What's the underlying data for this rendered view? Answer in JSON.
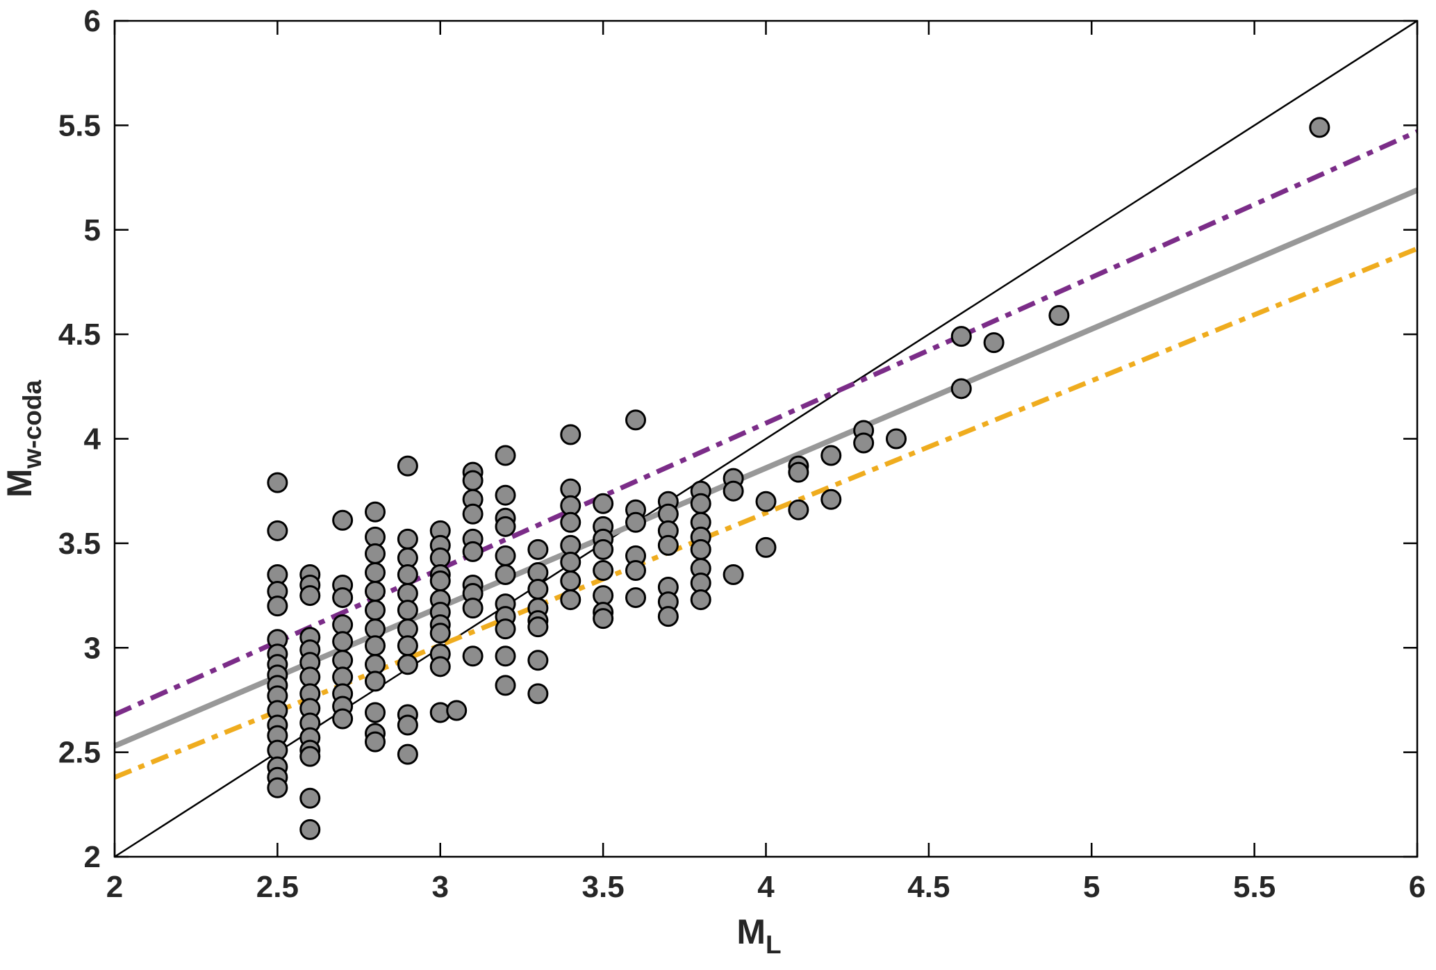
{
  "figure": {
    "background": "#ffffff",
    "frame_color": "#000000",
    "tick_color": "#262626"
  },
  "axes": {
    "xlabel": {
      "main": "M",
      "sub": "L"
    },
    "ylabel": {
      "main": "M",
      "sub": "w-coda"
    },
    "xtick_labels": [
      "2",
      "2.5",
      "3",
      "3.5",
      "4",
      "4.5",
      "5",
      "5.5",
      "6"
    ],
    "ytick_labels": [
      "2",
      "2.5",
      "3",
      "3.5",
      "4",
      "4.5",
      "5",
      "5.5",
      "6"
    ]
  },
  "chart_data": {
    "type": "scatter",
    "title": "",
    "xlabel": "M_L",
    "ylabel": "M_w-coda",
    "xlim": [
      2,
      6
    ],
    "ylim": [
      2,
      6
    ],
    "xticks": [
      2,
      2.5,
      3,
      3.5,
      4,
      4.5,
      5,
      5.5,
      6
    ],
    "yticks": [
      2,
      2.5,
      3,
      3.5,
      4,
      4.5,
      5,
      5.5,
      6
    ],
    "grid": false,
    "legend": "none",
    "marker": {
      "fill": "#8D8D8D",
      "stroke": "#000000",
      "radius": 13.5,
      "stroke_width": 3
    },
    "lines": [
      {
        "name": "one-to-one-line",
        "x": [
          2,
          6
        ],
        "y": [
          2,
          6
        ],
        "color": "#000000",
        "style": "solid",
        "width": 2.5
      },
      {
        "name": "regression-line",
        "x": [
          2,
          6
        ],
        "y": [
          2.53,
          5.19
        ],
        "color": "#989898",
        "style": "solid",
        "width": 8
      },
      {
        "name": "upper-bound-line",
        "x": [
          2,
          6
        ],
        "y": [
          2.68,
          5.47
        ],
        "color": "#7B2C88",
        "style": "dashdot",
        "width": 7
      },
      {
        "name": "lower-bound-line",
        "x": [
          2,
          6
        ],
        "y": [
          2.38,
          4.91
        ],
        "color": "#EFAC1E",
        "style": "dashdot",
        "width": 7
      }
    ],
    "points": [
      [
        2.5,
        3.79
      ],
      [
        2.5,
        3.56
      ],
      [
        2.5,
        3.35
      ],
      [
        2.5,
        3.27
      ],
      [
        2.5,
        3.2
      ],
      [
        2.5,
        3.04
      ],
      [
        2.5,
        2.97
      ],
      [
        2.5,
        2.92
      ],
      [
        2.5,
        2.87
      ],
      [
        2.5,
        2.82
      ],
      [
        2.5,
        2.77
      ],
      [
        2.5,
        2.7
      ],
      [
        2.5,
        2.63
      ],
      [
        2.5,
        2.58
      ],
      [
        2.5,
        2.51
      ],
      [
        2.5,
        2.43
      ],
      [
        2.5,
        2.38
      ],
      [
        2.5,
        2.33
      ],
      [
        2.6,
        3.35
      ],
      [
        2.6,
        3.3
      ],
      [
        2.6,
        3.25
      ],
      [
        2.6,
        3.05
      ],
      [
        2.6,
        2.99
      ],
      [
        2.6,
        2.93
      ],
      [
        2.6,
        2.86
      ],
      [
        2.6,
        2.78
      ],
      [
        2.6,
        2.71
      ],
      [
        2.6,
        2.64
      ],
      [
        2.6,
        2.57
      ],
      [
        2.6,
        2.51
      ],
      [
        2.6,
        2.48
      ],
      [
        2.6,
        2.28
      ],
      [
        2.6,
        2.13
      ],
      [
        2.7,
        3.61
      ],
      [
        2.7,
        3.3
      ],
      [
        2.7,
        3.24
      ],
      [
        2.7,
        3.11
      ],
      [
        2.7,
        3.03
      ],
      [
        2.7,
        2.94
      ],
      [
        2.7,
        2.86
      ],
      [
        2.7,
        2.78
      ],
      [
        2.7,
        2.72
      ],
      [
        2.7,
        2.66
      ],
      [
        2.8,
        3.65
      ],
      [
        2.8,
        3.53
      ],
      [
        2.8,
        3.45
      ],
      [
        2.8,
        3.36
      ],
      [
        2.8,
        3.27
      ],
      [
        2.8,
        3.18
      ],
      [
        2.8,
        3.09
      ],
      [
        2.8,
        3.01
      ],
      [
        2.8,
        2.92
      ],
      [
        2.8,
        2.84
      ],
      [
        2.8,
        2.69
      ],
      [
        2.8,
        2.59
      ],
      [
        2.8,
        2.55
      ],
      [
        2.9,
        3.87
      ],
      [
        2.9,
        3.52
      ],
      [
        2.9,
        3.43
      ],
      [
        2.9,
        3.35
      ],
      [
        2.9,
        3.26
      ],
      [
        2.9,
        3.18
      ],
      [
        2.9,
        3.09
      ],
      [
        2.9,
        3.01
      ],
      [
        2.9,
        2.92
      ],
      [
        2.9,
        2.68
      ],
      [
        2.9,
        2.63
      ],
      [
        2.9,
        2.49
      ],
      [
        3.0,
        3.56
      ],
      [
        3.0,
        3.49
      ],
      [
        3.0,
        3.43
      ],
      [
        3.0,
        3.35
      ],
      [
        3.0,
        3.32
      ],
      [
        3.0,
        3.23
      ],
      [
        3.0,
        3.17
      ],
      [
        3.0,
        3.11
      ],
      [
        3.0,
        3.07
      ],
      [
        3.0,
        2.97
      ],
      [
        3.0,
        2.91
      ],
      [
        3.0,
        2.69
      ],
      [
        3.05,
        2.7
      ],
      [
        3.1,
        3.84
      ],
      [
        3.1,
        3.8
      ],
      [
        3.1,
        3.71
      ],
      [
        3.1,
        3.64
      ],
      [
        3.1,
        3.52
      ],
      [
        3.1,
        3.46
      ],
      [
        3.1,
        3.3
      ],
      [
        3.1,
        3.26
      ],
      [
        3.1,
        3.19
      ],
      [
        3.1,
        2.96
      ],
      [
        3.2,
        3.92
      ],
      [
        3.2,
        3.73
      ],
      [
        3.2,
        3.62
      ],
      [
        3.2,
        3.58
      ],
      [
        3.2,
        3.44
      ],
      [
        3.2,
        3.35
      ],
      [
        3.2,
        3.21
      ],
      [
        3.2,
        3.15
      ],
      [
        3.2,
        3.09
      ],
      [
        3.2,
        2.96
      ],
      [
        3.2,
        2.82
      ],
      [
        3.3,
        3.47
      ],
      [
        3.3,
        3.36
      ],
      [
        3.3,
        3.28
      ],
      [
        3.3,
        3.19
      ],
      [
        3.3,
        3.13
      ],
      [
        3.3,
        3.1
      ],
      [
        3.3,
        2.94
      ],
      [
        3.3,
        2.78
      ],
      [
        3.4,
        4.02
      ],
      [
        3.4,
        3.76
      ],
      [
        3.4,
        3.68
      ],
      [
        3.4,
        3.6
      ],
      [
        3.4,
        3.49
      ],
      [
        3.4,
        3.41
      ],
      [
        3.4,
        3.32
      ],
      [
        3.4,
        3.23
      ],
      [
        3.5,
        3.69
      ],
      [
        3.5,
        3.58
      ],
      [
        3.5,
        3.52
      ],
      [
        3.5,
        3.47
      ],
      [
        3.5,
        3.37
      ],
      [
        3.5,
        3.25
      ],
      [
        3.5,
        3.17
      ],
      [
        3.5,
        3.14
      ],
      [
        3.6,
        4.09
      ],
      [
        3.6,
        3.66
      ],
      [
        3.6,
        3.6
      ],
      [
        3.6,
        3.44
      ],
      [
        3.6,
        3.37
      ],
      [
        3.6,
        3.24
      ],
      [
        3.7,
        3.7
      ],
      [
        3.7,
        3.64
      ],
      [
        3.7,
        3.56
      ],
      [
        3.7,
        3.49
      ],
      [
        3.7,
        3.29
      ],
      [
        3.7,
        3.22
      ],
      [
        3.7,
        3.15
      ],
      [
        3.8,
        3.75
      ],
      [
        3.8,
        3.69
      ],
      [
        3.8,
        3.6
      ],
      [
        3.8,
        3.53
      ],
      [
        3.8,
        3.47
      ],
      [
        3.8,
        3.38
      ],
      [
        3.8,
        3.31
      ],
      [
        3.8,
        3.23
      ],
      [
        3.9,
        3.81
      ],
      [
        3.9,
        3.75
      ],
      [
        3.9,
        3.35
      ],
      [
        4.0,
        3.7
      ],
      [
        4.0,
        3.48
      ],
      [
        4.1,
        3.87
      ],
      [
        4.1,
        3.84
      ],
      [
        4.1,
        3.66
      ],
      [
        4.2,
        3.92
      ],
      [
        4.2,
        3.71
      ],
      [
        4.3,
        4.04
      ],
      [
        4.3,
        3.98
      ],
      [
        4.4,
        4.0
      ],
      [
        4.6,
        4.49
      ],
      [
        4.6,
        4.24
      ],
      [
        4.7,
        4.46
      ],
      [
        4.9,
        4.59
      ],
      [
        5.7,
        5.49
      ]
    ]
  }
}
